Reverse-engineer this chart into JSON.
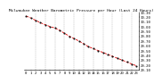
{
  "title": "Milwaukee Weather Barometric Pressure per Hour (Last 24 Hours)",
  "hours": [
    0,
    1,
    2,
    3,
    4,
    5,
    6,
    7,
    8,
    9,
    10,
    11,
    12,
    13,
    14,
    15,
    16,
    17,
    18,
    19,
    20,
    21,
    22,
    23
  ],
  "pressure": [
    30.22,
    30.18,
    30.13,
    30.08,
    30.04,
    30.0,
    29.97,
    29.92,
    29.86,
    29.8,
    29.75,
    29.7,
    29.64,
    29.58,
    29.54,
    29.5,
    29.46,
    29.42,
    29.38,
    29.34,
    29.3,
    29.26,
    29.22,
    29.18
  ],
  "line_color": "#dd0000",
  "marker_color": "#111111",
  "grid_color": "#999999",
  "bg_color": "#ffffff",
  "ylim_min": 29.1,
  "ylim_max": 30.3,
  "yticks": [
    29.1,
    29.2,
    29.3,
    29.4,
    29.5,
    29.6,
    29.7,
    29.8,
    29.9,
    30.0,
    30.1,
    30.2,
    30.3
  ],
  "title_fontsize": 3.2,
  "tick_fontsize": 2.8,
  "marker_size": 1.5,
  "line_width": 0.6
}
